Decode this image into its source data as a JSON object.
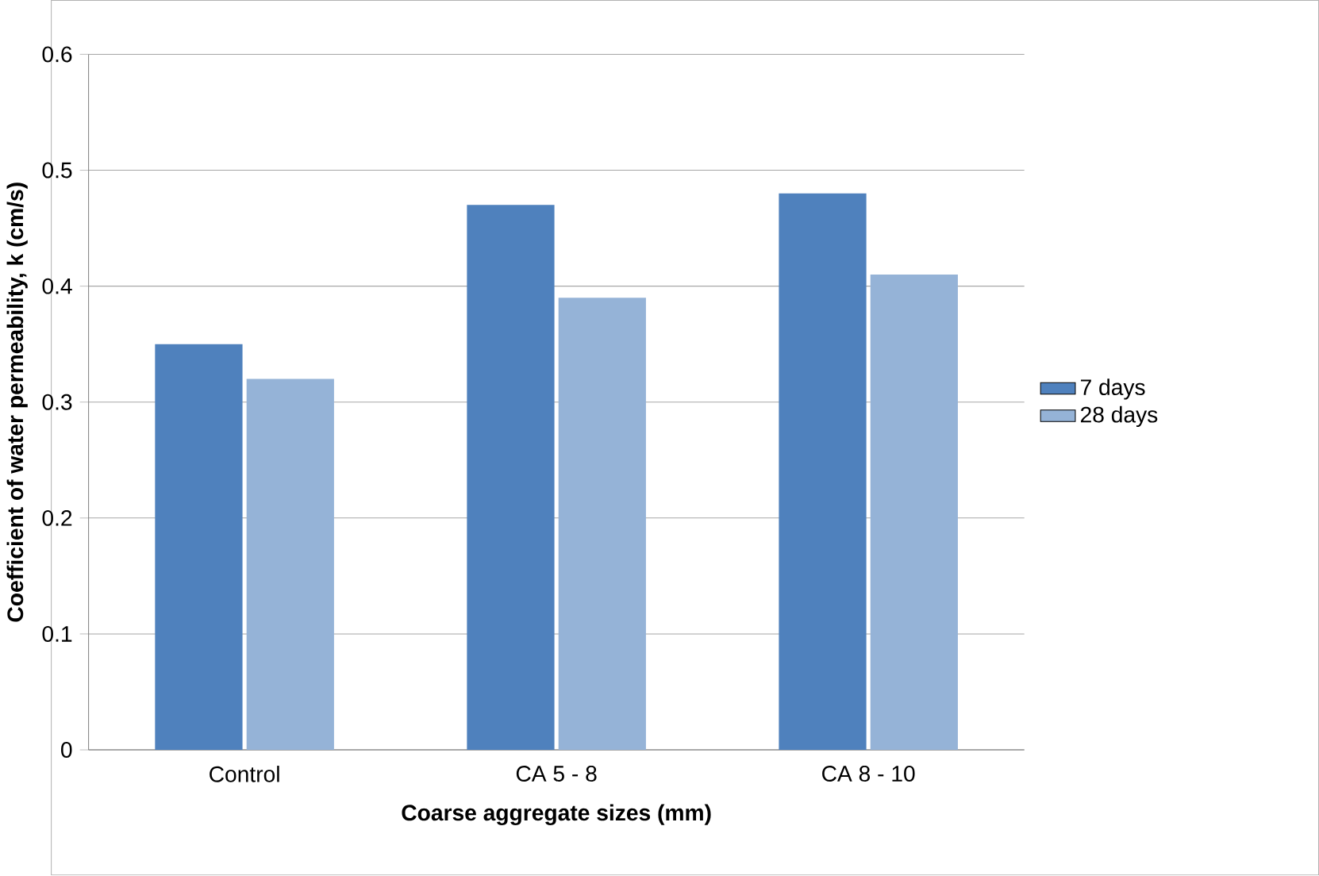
{
  "chart_data": {
    "type": "bar",
    "xlabel": "Coarse aggregate sizes (mm)",
    "ylabel": "Coefficient of water permeability, k (cm/s)",
    "categories": [
      "Control",
      "CA 5 - 8",
      "CA 8 - 10"
    ],
    "series": [
      {
        "name": "7 days",
        "color": "#4f81bd",
        "values": [
          0.35,
          0.47,
          0.48
        ]
      },
      {
        "name": "28 days",
        "color": "#95b3d7",
        "values": [
          0.32,
          0.39,
          0.41
        ]
      }
    ],
    "ylim": [
      0,
      0.6
    ],
    "yticks": [
      0,
      0.1,
      0.2,
      0.3,
      0.4,
      0.5,
      0.6
    ],
    "grid": "y",
    "legend": "right"
  }
}
